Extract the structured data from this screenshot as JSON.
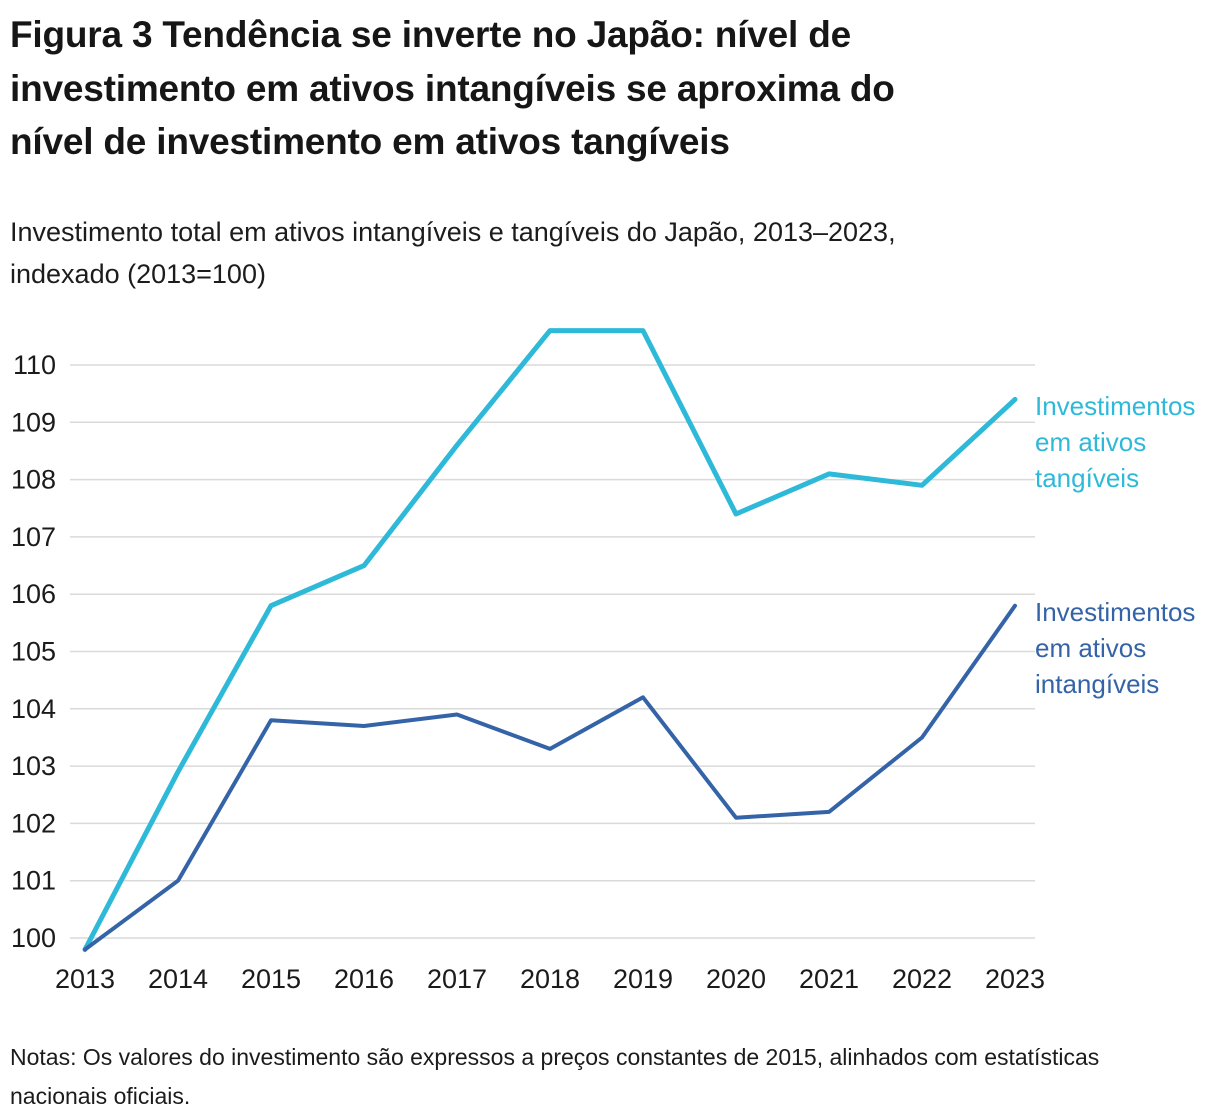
{
  "title": {
    "line1": "Figura 3 Tendência se inverte no Japão: nível de",
    "line2": "investimento em ativos intangíveis se aproxima do",
    "line3": "nível de investimento em ativos tangíveis"
  },
  "subtitle": {
    "line1": "Investimento total em ativos intangíveis e tangíveis do Japão, 2013–2023,",
    "line2": "indexado (2013=100)"
  },
  "notes": "Notas: Os valores do investimento são expressos a preços constantes de 2015, alinhados com estatísticas nacionais oficiais.",
  "chart_data": {
    "type": "line",
    "title": "Figura 3 Tendência se inverte no Japão: nível de investimento em ativos intangíveis se aproxima do nível de investimento em ativos tangíveis",
    "subtitle": "Investimento total em ativos intangíveis e tangíveis do Japão, 2013–2023, indexado (2013=100)",
    "x": [
      2013,
      2014,
      2015,
      2016,
      2017,
      2018,
      2019,
      2020,
      2021,
      2022,
      2023
    ],
    "xlabel": "",
    "ylabel": "",
    "yticks": [
      100,
      101,
      102,
      103,
      104,
      105,
      106,
      107,
      108,
      109,
      110
    ],
    "ylim": [
      99.5,
      110.9
    ],
    "grid": true,
    "legend_position": "right-of-line-ends",
    "grid_color": "#dadada",
    "series": [
      {
        "name": "Investimentos em ativos tangíveis",
        "color": "#2FB9D9",
        "values": [
          99.8,
          102.9,
          105.8,
          106.5,
          108.6,
          110.6,
          110.6,
          107.4,
          108.1,
          107.9,
          109.4
        ]
      },
      {
        "name": "Investimentos em ativos intangíveis",
        "color": "#3464A7",
        "values": [
          99.8,
          101.0,
          103.8,
          103.7,
          103.9,
          103.3,
          104.2,
          102.1,
          102.2,
          103.5,
          105.8
        ]
      }
    ]
  }
}
